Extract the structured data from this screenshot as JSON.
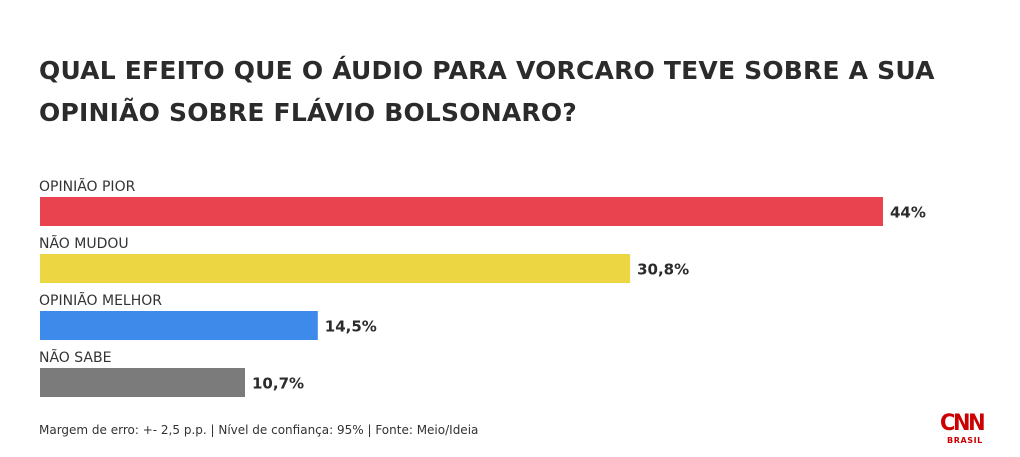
{
  "chart_data": {
    "type": "bar",
    "orientation": "horizontal",
    "title": "QUAL EFEITO QUE O ÁUDIO PARA VORCARO TEVE SOBRE A SUA OPINIÃO SOBRE FLÁVIO BOLSONARO?",
    "categories": [
      "OPINIÃO PIOR",
      "NÃO MUDOU",
      "OPINIÃO MELHOR",
      "NÃO SABE"
    ],
    "values": [
      44,
      30.8,
      14.5,
      10.7
    ],
    "value_labels": [
      "44%",
      "30,8%",
      "14,5%",
      "10,7%"
    ],
    "colors": [
      "#e8434f",
      "#ecd743",
      "#3e8aea",
      "#7b7b7b"
    ],
    "xlim": [
      0,
      44
    ],
    "grid": false,
    "legend": "none"
  },
  "footer": {
    "note": "Margem de erro: +- 2,5 p.p. | Nível de confiança: 95% | Fonte: Meio/Ideia"
  },
  "logo": {
    "name": "CNN",
    "sub": "BRASIL",
    "color": "#cc0000"
  }
}
